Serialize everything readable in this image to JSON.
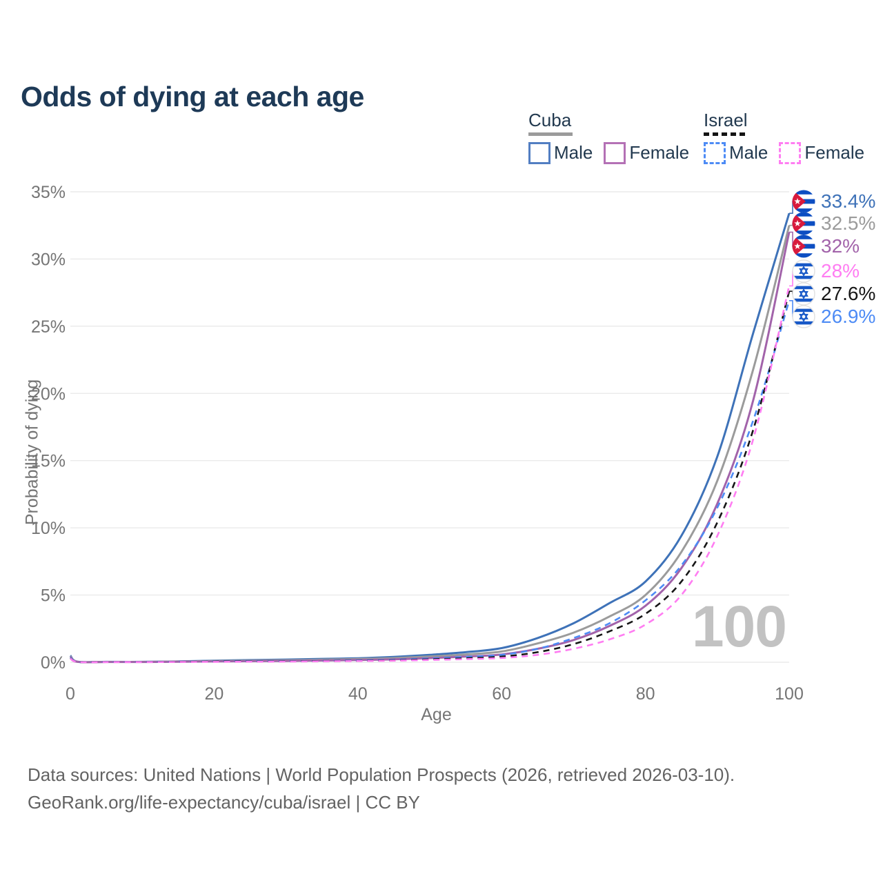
{
  "title": "Odds of dying at each age",
  "legend": {
    "groups": [
      {
        "name": "Cuba",
        "line_style": "solid",
        "underline_color": "#9b9b9b",
        "items": [
          {
            "label": "Male",
            "color": "#527ec2"
          },
          {
            "label": "Female",
            "color": "#b471b5"
          }
        ]
      },
      {
        "name": "Israel",
        "line_style": "dashed",
        "underline_color": "#141414",
        "items": [
          {
            "label": "Male",
            "color": "#4d8bf5"
          },
          {
            "label": "Female",
            "color": "#ff7df2"
          }
        ]
      }
    ]
  },
  "watermark_age": "100",
  "footer": {
    "line1": "Data sources: United Nations | World Population Prospects (2026, retrieved 2026-03-10).",
    "line2": "GeoRank.org/life-expectancy/cuba/israel | CC BY"
  },
  "chart_data": {
    "type": "line",
    "title": "Odds of dying at each age",
    "xlabel": "Age",
    "ylabel": "Probability of dying",
    "xlim": [
      0,
      100
    ],
    "ylim": [
      0,
      35
    ],
    "xticks": [
      0,
      20,
      40,
      60,
      80,
      100
    ],
    "yticks": [
      "0%",
      "5%",
      "10%",
      "15%",
      "20%",
      "25%",
      "30%",
      "35%"
    ],
    "grid": "horizontal",
    "legend_position": "top-right",
    "x": [
      0,
      1,
      5,
      10,
      15,
      20,
      25,
      30,
      35,
      40,
      45,
      50,
      55,
      60,
      65,
      70,
      75,
      80,
      85,
      90,
      95,
      100
    ],
    "series": [
      {
        "name": "Cuba Male",
        "country": "Cuba",
        "sex": "male",
        "style": "solid",
        "color": "#3e72b8",
        "end_label": "33.4%",
        "values": [
          0.5,
          0.04,
          0.03,
          0.03,
          0.06,
          0.12,
          0.16,
          0.2,
          0.25,
          0.3,
          0.4,
          0.55,
          0.75,
          1.05,
          1.8,
          2.9,
          4.4,
          6.0,
          9.4,
          15.3,
          24.5,
          33.4
        ]
      },
      {
        "name": "Cuba Both sexes",
        "country": "Cuba",
        "sex": "both",
        "style": "solid",
        "color": "#9b9b9b",
        "end_label": "32.5%",
        "values": [
          0.45,
          0.035,
          0.025,
          0.025,
          0.05,
          0.09,
          0.12,
          0.15,
          0.19,
          0.24,
          0.31,
          0.43,
          0.58,
          0.8,
          1.4,
          2.2,
          3.4,
          5.0,
          8.2,
          13.5,
          21.8,
          32.5
        ]
      },
      {
        "name": "Cuba Female",
        "country": "Cuba",
        "sex": "female",
        "style": "solid",
        "color": "#a263aa",
        "end_label": "32%",
        "values": [
          0.4,
          0.03,
          0.02,
          0.02,
          0.04,
          0.06,
          0.08,
          0.1,
          0.13,
          0.17,
          0.22,
          0.31,
          0.42,
          0.58,
          1.0,
          1.65,
          2.7,
          4.2,
          7.0,
          11.8,
          19.5,
          32.0
        ]
      },
      {
        "name": "Israel Female",
        "country": "Israel",
        "sex": "female",
        "style": "dashed",
        "color": "#ff7df2",
        "end_label": "28%",
        "values": [
          0.28,
          0.02,
          0.01,
          0.01,
          0.02,
          0.03,
          0.04,
          0.05,
          0.07,
          0.09,
          0.12,
          0.17,
          0.23,
          0.32,
          0.55,
          1.0,
          1.7,
          2.8,
          5.0,
          9.4,
          16.6,
          28.0
        ]
      },
      {
        "name": "Israel Both sexes",
        "country": "Israel",
        "sex": "both",
        "style": "dashed",
        "color": "#161616",
        "end_label": "27.6%",
        "values": [
          0.3,
          0.02,
          0.015,
          0.015,
          0.03,
          0.05,
          0.06,
          0.07,
          0.09,
          0.11,
          0.15,
          0.22,
          0.3,
          0.42,
          0.75,
          1.35,
          2.3,
          3.6,
          6.0,
          10.4,
          17.3,
          27.6
        ]
      },
      {
        "name": "Israel Male",
        "country": "Israel",
        "sex": "male",
        "style": "dashed",
        "color": "#4d8bf5",
        "end_label": "26.9%",
        "values": [
          0.35,
          0.025,
          0.02,
          0.02,
          0.04,
          0.06,
          0.08,
          0.09,
          0.11,
          0.14,
          0.19,
          0.28,
          0.4,
          0.55,
          1.0,
          1.8,
          2.9,
          4.6,
          7.2,
          11.5,
          18.0,
          26.9
        ]
      }
    ]
  }
}
